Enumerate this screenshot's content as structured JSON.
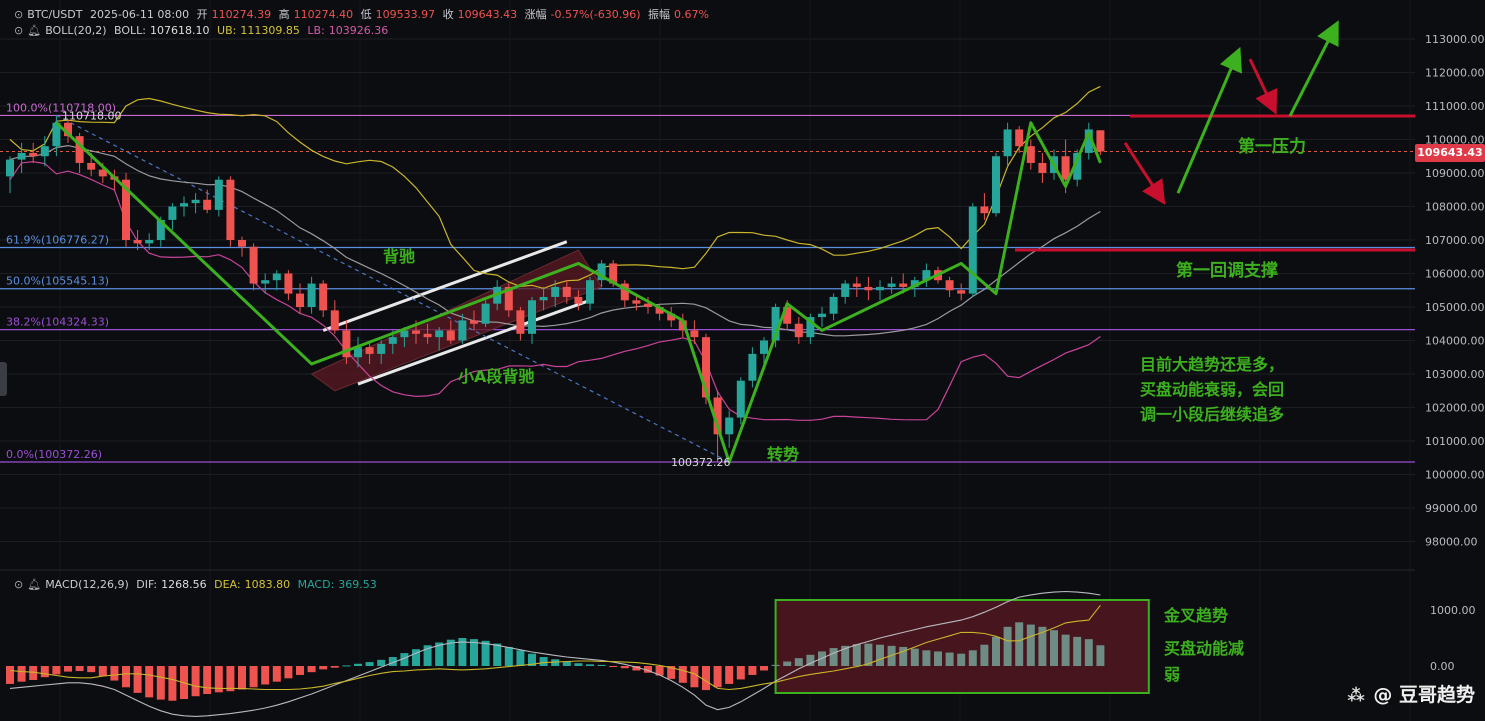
{
  "header": {
    "symbol": "BTC/USDT",
    "datetime": "2025-06-11 08:00",
    "open_label": "开",
    "open": "110274.39",
    "high_label": "高",
    "high": "110274.40",
    "low_label": "低",
    "low": "109533.97",
    "close_label": "收",
    "close": "109643.43",
    "change_label": "涨幅",
    "change": "-0.57%(-630.96)",
    "amplitude_label": "振幅",
    "amplitude": "0.67%"
  },
  "boll": {
    "name": "BOLL(20,2)",
    "boll_label": "BOLL:",
    "boll_value": "107618.10",
    "ub_label": "UB:",
    "ub_value": "111309.85",
    "lb_label": "LB:",
    "lb_value": "103926.36"
  },
  "macd": {
    "name": "MACD(12,26,9)",
    "dif_label": "DIF:",
    "dif_value": "1268.56",
    "dea_label": "DEA:",
    "dea_value": "1083.80",
    "macd_label": "MACD:",
    "macd_value": "369.53"
  },
  "current_price": "109643.43",
  "fib_levels": [
    {
      "label": "100.0%(110718.00)",
      "price": 110718.0,
      "color": "#c86ad0"
    },
    {
      "label": "61.9%(106776.27)",
      "price": 106776.27,
      "color": "#5b8fe0"
    },
    {
      "label": "50.0%(105545.13)",
      "price": 105545.13,
      "color": "#5b8fe0"
    },
    {
      "label": "38.2%(104324.33)",
      "price": 104324.33,
      "color": "#9b4fd6"
    },
    {
      "label": "0.0%(100372.26)",
      "price": 100372.26,
      "color": "#9b4fd6"
    }
  ],
  "high_marker": "110718.00",
  "low_marker": "100372.26",
  "annotations": {
    "divergence": "背驰",
    "small_a_divergence": "小A段背驰",
    "reversal": "转势",
    "first_resistance": "第一压力",
    "first_pullback_support": "第一回调支撑",
    "trend_note_1": "目前大趋势还是多，",
    "trend_note_2": "买盘动能衰弱，会回",
    "trend_note_3": "调一小段后继续追多",
    "golden_cross": "金叉趋势",
    "buy_momentum_1": "买盘动能减",
    "buy_momentum_2": "弱"
  },
  "watermark": "豆哥趋势",
  "colors": {
    "bull": "#26a69a",
    "bear": "#ef5350",
    "zigzag": "#3cb01e",
    "ub": "#c9b52a",
    "mid": "#9a9aa0",
    "lb": "#c8449a",
    "annotation_text": "#3cb01e",
    "arrow_red": "#c8102e"
  },
  "chart_data": {
    "type": "candlestick",
    "interval": "4h",
    "y_axis": {
      "ticks": [
        98000,
        99000,
        100000,
        101000,
        102000,
        103000,
        104000,
        105000,
        106000,
        107000,
        108000,
        109000,
        110000,
        111000,
        112000,
        113000
      ],
      "range": [
        97300,
        113600
      ]
    },
    "y_tick_labels": [
      "98000.00",
      "99000.00",
      "100000.00",
      "101000.00",
      "102000.00",
      "103000.00",
      "104000.00",
      "105000.00",
      "106000.00",
      "107000.00",
      "108000.00",
      "109000.00",
      "110000.00",
      "111000.00",
      "112000.00",
      "113000.00"
    ],
    "macd_axis": {
      "ticks": [
        0,
        1000
      ],
      "range": [
        -1300,
        1900
      ],
      "tick_labels": [
        "0.00",
        "1000.00"
      ]
    },
    "candles": [
      [
        108900,
        109500,
        108400,
        109400
      ],
      [
        109400,
        109900,
        109000,
        109600
      ],
      [
        109600,
        109900,
        109300,
        109500
      ],
      [
        109500,
        110100,
        109200,
        109800
      ],
      [
        109800,
        110718,
        109500,
        110500
      ],
      [
        110500,
        110600,
        109900,
        110100
      ],
      [
        110100,
        110200,
        109000,
        109300
      ],
      [
        109300,
        109600,
        108900,
        109100
      ],
      [
        109100,
        109300,
        108700,
        108900
      ],
      [
        108900,
        109100,
        108500,
        108800
      ],
      [
        108800,
        109000,
        106800,
        107000
      ],
      [
        107000,
        107300,
        106700,
        106900
      ],
      [
        106900,
        107200,
        106700,
        107000
      ],
      [
        107000,
        107700,
        106800,
        107600
      ],
      [
        107600,
        108100,
        107300,
        108000
      ],
      [
        108000,
        108300,
        107700,
        108100
      ],
      [
        108100,
        108400,
        107800,
        108200
      ],
      [
        108200,
        108500,
        107800,
        107900
      ],
      [
        107900,
        108900,
        107700,
        108800
      ],
      [
        108800,
        108900,
        106800,
        107000
      ],
      [
        107000,
        107100,
        106500,
        106800
      ],
      [
        106800,
        106900,
        105500,
        105700
      ],
      [
        105700,
        106000,
        105400,
        105800
      ],
      [
        105800,
        106100,
        105500,
        106000
      ],
      [
        106000,
        106100,
        105200,
        105400
      ],
      [
        105400,
        105700,
        104800,
        105000
      ],
      [
        105000,
        105900,
        104800,
        105700
      ],
      [
        105700,
        105800,
        104700,
        104900
      ],
      [
        104900,
        105200,
        104200,
        104300
      ],
      [
        104300,
        104600,
        103300,
        103500
      ],
      [
        103500,
        104100,
        103200,
        103800
      ],
      [
        103800,
        104000,
        103300,
        103600
      ],
      [
        103600,
        104000,
        103300,
        103900
      ],
      [
        103900,
        104300,
        103600,
        104100
      ],
      [
        104100,
        104400,
        103800,
        104300
      ],
      [
        104300,
        104600,
        103900,
        104200
      ],
      [
        104200,
        104500,
        103900,
        104100
      ],
      [
        104100,
        104400,
        103700,
        104300
      ],
      [
        104300,
        104600,
        103900,
        104000
      ],
      [
        104000,
        104800,
        103900,
        104600
      ],
      [
        104600,
        104900,
        104300,
        104500
      ],
      [
        104500,
        105200,
        104400,
        105100
      ],
      [
        105100,
        105800,
        104900,
        105600
      ],
      [
        105600,
        105700,
        104700,
        104900
      ],
      [
        104900,
        105000,
        104000,
        104200
      ],
      [
        104200,
        105300,
        103900,
        105200
      ],
      [
        105200,
        105600,
        104900,
        105300
      ],
      [
        105300,
        105800,
        105000,
        105600
      ],
      [
        105600,
        105800,
        105100,
        105300
      ],
      [
        105300,
        105500,
        104900,
        105100
      ],
      [
        105100,
        105900,
        104900,
        105800
      ],
      [
        105800,
        106400,
        105600,
        106300
      ],
      [
        106300,
        106400,
        105600,
        105700
      ],
      [
        105700,
        105800,
        105000,
        105200
      ],
      [
        105200,
        105400,
        104900,
        105100
      ],
      [
        105100,
        105300,
        104800,
        105000
      ],
      [
        105000,
        105100,
        104600,
        104800
      ],
      [
        104800,
        105000,
        104400,
        104600
      ],
      [
        104600,
        104800,
        104100,
        104300
      ],
      [
        104300,
        104600,
        103900,
        104100
      ],
      [
        104100,
        104200,
        102100,
        102300
      ],
      [
        102300,
        102500,
        100372,
        101200
      ],
      [
        101200,
        101900,
        100800,
        101700
      ],
      [
        101700,
        102900,
        101500,
        102800
      ],
      [
        102800,
        103800,
        102600,
        103600
      ],
      [
        103600,
        104100,
        103300,
        104000
      ],
      [
        104000,
        105100,
        103800,
        105000
      ],
      [
        105000,
        105200,
        104300,
        104500
      ],
      [
        104500,
        104700,
        103900,
        104100
      ],
      [
        104100,
        104800,
        103900,
        104700
      ],
      [
        104700,
        105000,
        104400,
        104800
      ],
      [
        104800,
        105400,
        104600,
        105300
      ],
      [
        105300,
        105800,
        105100,
        105700
      ],
      [
        105700,
        105900,
        105300,
        105600
      ],
      [
        105600,
        105900,
        105200,
        105500
      ],
      [
        105500,
        105800,
        105200,
        105600
      ],
      [
        105600,
        105900,
        105400,
        105700
      ],
      [
        105700,
        106000,
        105400,
        105600
      ],
      [
        105600,
        105900,
        105300,
        105800
      ],
      [
        105800,
        106300,
        105600,
        106100
      ],
      [
        106100,
        106200,
        105700,
        105800
      ],
      [
        105800,
        105900,
        105300,
        105500
      ],
      [
        105500,
        105700,
        105200,
        105400
      ],
      [
        105400,
        108100,
        105300,
        108000
      ],
      [
        108000,
        108400,
        107600,
        107800
      ],
      [
        107800,
        109600,
        107700,
        109500
      ],
      [
        109500,
        110500,
        109200,
        110300
      ],
      [
        110300,
        110400,
        109600,
        109800
      ],
      [
        109800,
        110000,
        109100,
        109300
      ],
      [
        109300,
        109600,
        108700,
        109000
      ],
      [
        109000,
        109700,
        108800,
        109500
      ],
      [
        109500,
        110000,
        108400,
        108800
      ],
      [
        108800,
        109700,
        108600,
        109600
      ],
      [
        109600,
        110500,
        109400,
        110300
      ],
      [
        110274.39,
        110274.4,
        109533.97,
        109643.43
      ]
    ],
    "macd_hist": [
      -320,
      -280,
      -250,
      -200,
      -150,
      -100,
      -90,
      -110,
      -180,
      -260,
      -380,
      -480,
      -560,
      -600,
      -620,
      -590,
      -540,
      -500,
      -470,
      -450,
      -420,
      -380,
      -330,
      -280,
      -220,
      -160,
      -110,
      -60,
      -30,
      10,
      40,
      70,
      110,
      160,
      230,
      300,
      370,
      420,
      470,
      500,
      480,
      450,
      400,
      340,
      280,
      220,
      160,
      120,
      80,
      50,
      30,
      20,
      -10,
      -40,
      -80,
      -120,
      -170,
      -230,
      -300,
      -380,
      -430,
      -380,
      -320,
      -240,
      -160,
      -80,
      20,
      80,
      140,
      200,
      260,
      320,
      360,
      390,
      400,
      380,
      360,
      340,
      310,
      280,
      260,
      240,
      220,
      280,
      380,
      520,
      700,
      780,
      740,
      700,
      640,
      560,
      520,
      480,
      370
    ],
    "dif": [
      -400,
      -380,
      -360,
      -340,
      -320,
      -300,
      -300,
      -320,
      -360,
      -420,
      -520,
      -620,
      -720,
      -800,
      -860,
      -890,
      -900,
      -890,
      -870,
      -850,
      -820,
      -790,
      -750,
      -700,
      -640,
      -570,
      -500,
      -420,
      -340,
      -260,
      -180,
      -100,
      -20,
      60,
      140,
      230,
      310,
      370,
      410,
      430,
      420,
      400,
      370,
      330,
      290,
      250,
      220,
      190,
      160,
      140,
      120,
      100,
      70,
      30,
      -20,
      -80,
      -160,
      -260,
      -380,
      -520,
      -700,
      -780,
      -740,
      -640,
      -520,
      -400,
      -270,
      -160,
      -50,
      50,
      140,
      230,
      310,
      380,
      440,
      500,
      550,
      600,
      650,
      700,
      740,
      780,
      820,
      880,
      960,
      1050,
      1150,
      1230,
      1270,
      1300,
      1320,
      1330,
      1320,
      1300,
      1268.56
    ],
    "dea": [
      -80,
      -100,
      -110,
      -140,
      -170,
      -200,
      -210,
      -210,
      -180,
      -160,
      -140,
      -140,
      -160,
      -200,
      -240,
      -300,
      -360,
      -390,
      -400,
      -400,
      -400,
      -410,
      -420,
      -420,
      -420,
      -410,
      -390,
      -360,
      -310,
      -270,
      -220,
      -170,
      -130,
      -100,
      -90,
      -70,
      -60,
      -50,
      -60,
      -70,
      -60,
      -50,
      -30,
      -10,
      10,
      30,
      60,
      70,
      80,
      90,
      90,
      80,
      80,
      70,
      60,
      40,
      10,
      -30,
      -80,
      -140,
      -270,
      -400,
      -420,
      -400,
      -360,
      -320,
      -290,
      -240,
      -190,
      -150,
      -120,
      -90,
      -50,
      -10,
      40,
      120,
      190,
      260,
      340,
      420,
      480,
      540,
      600,
      600,
      580,
      530,
      450,
      450,
      530,
      600,
      680,
      770,
      800,
      820,
      1083.8
    ]
  }
}
